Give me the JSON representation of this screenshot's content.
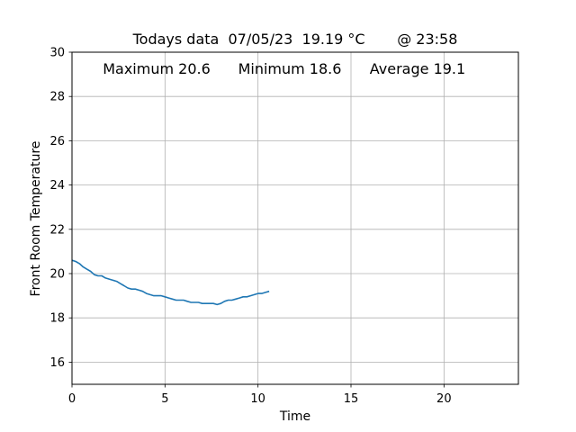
{
  "chart_data": {
    "type": "line",
    "title": "Todays data  07/05/23  19.19 °C       @ 23:58",
    "annotations": {
      "maximum": "Maximum 20.6",
      "minimum": "Minimum 18.6",
      "average": "Average 19.1"
    },
    "xlabel": "Time",
    "ylabel": "Front Room Temperature",
    "xlim": [
      0,
      24
    ],
    "ylim": [
      15,
      30
    ],
    "xticks": [
      0,
      5,
      10,
      15,
      20
    ],
    "yticks": [
      16,
      18,
      20,
      22,
      24,
      26,
      28,
      30
    ],
    "grid": true,
    "series": [
      {
        "color": "#1f77b4",
        "x": [
          0,
          0.2,
          0.4,
          0.6,
          0.8,
          1.0,
          1.2,
          1.4,
          1.6,
          1.8,
          2.0,
          2.2,
          2.4,
          2.6,
          2.8,
          3.0,
          3.2,
          3.4,
          3.6,
          3.8,
          4.0,
          4.2,
          4.4,
          4.6,
          4.8,
          5.0,
          5.2,
          5.4,
          5.6,
          5.8,
          6.0,
          6.2,
          6.4,
          6.6,
          6.8,
          7.0,
          7.2,
          7.4,
          7.6,
          7.8,
          8.0,
          8.2,
          8.4,
          8.6,
          8.8,
          9.0,
          9.2,
          9.4,
          9.6,
          9.8,
          10.0,
          10.2,
          10.4,
          10.6
        ],
        "y": [
          20.6,
          20.55,
          20.45,
          20.3,
          20.2,
          20.1,
          19.95,
          19.9,
          19.9,
          19.8,
          19.75,
          19.7,
          19.65,
          19.55,
          19.45,
          19.35,
          19.3,
          19.3,
          19.25,
          19.2,
          19.1,
          19.05,
          19.0,
          19.0,
          19.0,
          18.95,
          18.9,
          18.85,
          18.8,
          18.8,
          18.8,
          18.75,
          18.7,
          18.7,
          18.7,
          18.65,
          18.65,
          18.65,
          18.65,
          18.6,
          18.65,
          18.75,
          18.8,
          18.8,
          18.85,
          18.9,
          18.95,
          18.95,
          19.0,
          19.05,
          19.1,
          19.1,
          19.15,
          19.2
        ]
      }
    ]
  }
}
